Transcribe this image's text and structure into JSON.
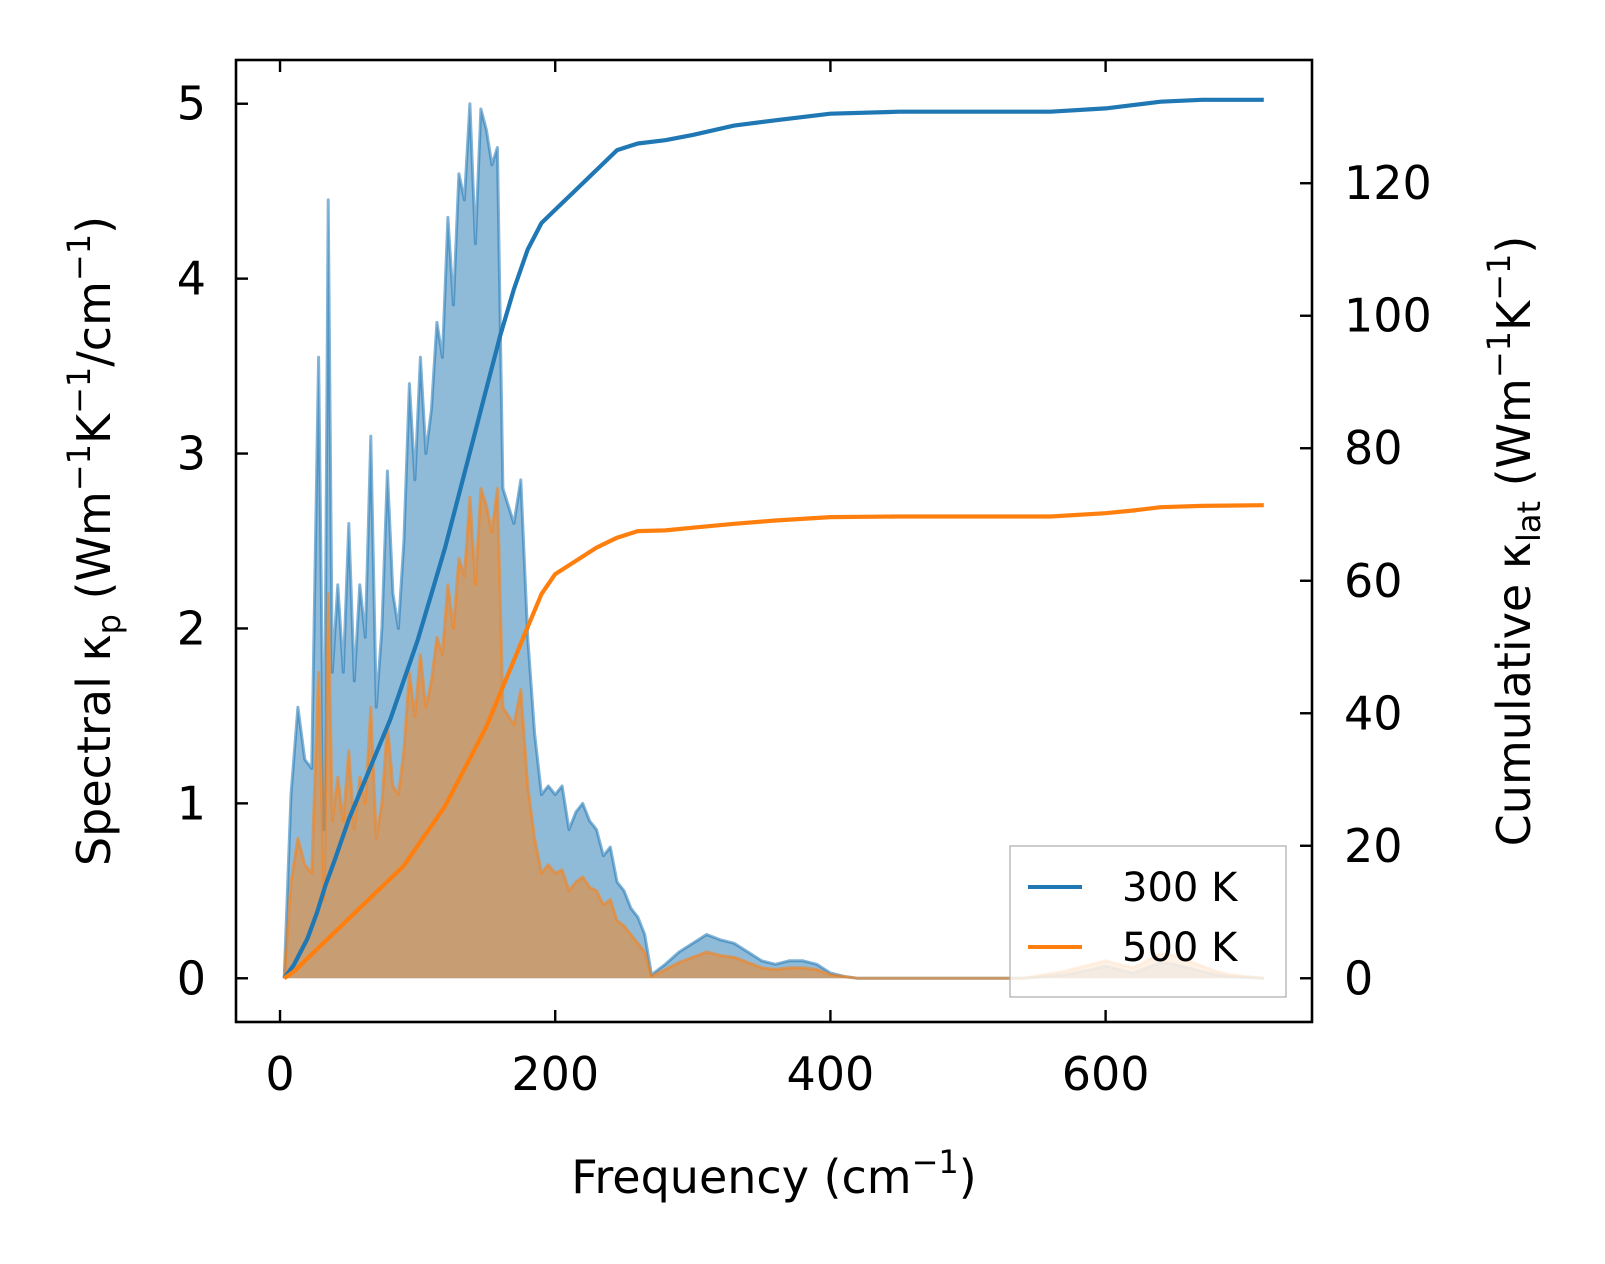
{
  "chart_data": {
    "type": "line",
    "x_axis": {
      "label_main": "Frequency (cm",
      "label_sup": "−1",
      "label_tail": ")",
      "range": [
        -32,
        750
      ],
      "ticks": [
        0,
        200,
        400,
        600
      ],
      "tick_labels": [
        "0",
        "200",
        "400",
        "600"
      ]
    },
    "y_left": {
      "label_prefix": "Spectral κ",
      "label_sub": "p",
      "label_part1": " (Wm",
      "label_sup1": "−1",
      "label_part2": "K",
      "label_sup2": "−1",
      "label_part3": "/cm",
      "label_sup3": "−1",
      "label_part4": ")",
      "range": [
        -0.25,
        5.25
      ],
      "ticks": [
        0,
        1,
        2,
        3,
        4,
        5
      ],
      "tick_labels": [
        "0",
        "1",
        "2",
        "3",
        "4",
        "5"
      ]
    },
    "y_right": {
      "label_prefix": "Cumulative κ",
      "label_sub": "lat",
      "label_part1": " (Wm",
      "label_sup1": "−1",
      "label_part2": "K",
      "label_sup2": "−1",
      "label_part3": ")",
      "range": [
        -6.6,
        138.6
      ],
      "ticks": [
        0,
        20,
        40,
        60,
        80,
        100,
        120
      ],
      "tick_labels": [
        "0",
        "20",
        "40",
        "60",
        "80",
        "100",
        "120"
      ]
    },
    "legend": {
      "position": "lower-right",
      "entries": [
        {
          "label": "300 K",
          "color": "#1f77b4"
        },
        {
          "label": "500 K",
          "color": "#ff7f0e"
        }
      ]
    },
    "spectral_series": [
      {
        "name": "300 K",
        "color": "#1f77b4",
        "x": [
          3,
          8,
          13,
          18,
          23,
          28,
          32,
          35,
          38,
          42,
          46,
          50,
          54,
          58,
          62,
          66,
          70,
          74,
          78,
          82,
          86,
          90,
          94,
          98,
          102,
          106,
          110,
          114,
          118,
          122,
          126,
          130,
          134,
          138,
          142,
          146,
          150,
          154,
          158,
          162,
          166,
          170,
          175,
          180,
          185,
          190,
          195,
          200,
          205,
          210,
          215,
          220,
          225,
          230,
          235,
          240,
          245,
          250,
          255,
          260,
          265,
          270,
          280,
          290,
          300,
          310,
          320,
          330,
          340,
          350,
          360,
          370,
          380,
          390,
          400,
          410,
          420,
          500,
          540,
          570,
          590,
          600,
          610,
          620,
          630,
          640,
          650,
          660,
          670,
          680,
          690,
          715
        ],
        "y": [
          0,
          1.05,
          1.55,
          1.25,
          1.2,
          3.55,
          0.85,
          4.45,
          1.75,
          2.25,
          1.75,
          2.6,
          1.7,
          2.25,
          1.95,
          3.1,
          1.55,
          2.0,
          2.9,
          2.2,
          2.0,
          2.5,
          3.4,
          2.85,
          3.55,
          3.0,
          3.25,
          3.75,
          3.55,
          4.35,
          3.85,
          4.6,
          4.45,
          5.0,
          4.2,
          4.97,
          4.85,
          4.65,
          4.75,
          2.8,
          2.7,
          2.6,
          2.85,
          1.95,
          1.4,
          1.05,
          1.1,
          1.05,
          1.1,
          0.85,
          0.95,
          1.0,
          0.9,
          0.85,
          0.7,
          0.75,
          0.55,
          0.5,
          0.4,
          0.35,
          0.25,
          0.02,
          0.08,
          0.15,
          0.2,
          0.25,
          0.22,
          0.2,
          0.15,
          0.1,
          0.08,
          0.1,
          0.1,
          0.08,
          0.03,
          0.01,
          0.0,
          0.0,
          0.0,
          0.02,
          0.05,
          0.07,
          0.05,
          0.03,
          0.06,
          0.09,
          0.08,
          0.06,
          0.04,
          0.02,
          0.01,
          0.0
        ]
      },
      {
        "name": "500 K",
        "color": "#ff7f0e",
        "x": [
          3,
          8,
          13,
          18,
          23,
          28,
          32,
          35,
          38,
          42,
          46,
          50,
          54,
          58,
          62,
          66,
          70,
          74,
          78,
          82,
          86,
          90,
          94,
          98,
          102,
          106,
          110,
          114,
          118,
          122,
          126,
          130,
          134,
          138,
          142,
          146,
          150,
          154,
          158,
          162,
          166,
          170,
          175,
          180,
          185,
          190,
          195,
          200,
          205,
          210,
          215,
          220,
          225,
          230,
          235,
          240,
          245,
          250,
          255,
          260,
          265,
          270,
          280,
          290,
          300,
          310,
          320,
          330,
          340,
          350,
          360,
          370,
          380,
          390,
          400,
          410,
          420,
          500,
          540,
          570,
          590,
          600,
          610,
          620,
          630,
          640,
          650,
          660,
          670,
          680,
          690,
          715
        ],
        "y": [
          0,
          0.55,
          0.8,
          0.65,
          0.6,
          1.75,
          0.45,
          2.2,
          0.9,
          1.15,
          0.9,
          1.3,
          0.85,
          1.15,
          1.0,
          1.55,
          0.8,
          1.0,
          1.45,
          1.1,
          1.05,
          1.3,
          1.75,
          1.5,
          1.85,
          1.55,
          1.7,
          1.95,
          1.85,
          2.25,
          2.0,
          2.4,
          2.3,
          2.75,
          2.25,
          2.8,
          2.7,
          2.55,
          2.8,
          1.55,
          1.5,
          1.45,
          1.65,
          1.1,
          0.8,
          0.6,
          0.65,
          0.6,
          0.62,
          0.5,
          0.55,
          0.58,
          0.52,
          0.5,
          0.42,
          0.45,
          0.33,
          0.3,
          0.25,
          0.2,
          0.15,
          0.01,
          0.05,
          0.09,
          0.12,
          0.15,
          0.13,
          0.12,
          0.09,
          0.06,
          0.05,
          0.06,
          0.06,
          0.05,
          0.02,
          0.01,
          0.0,
          0.0,
          0.0,
          0.04,
          0.08,
          0.1,
          0.08,
          0.06,
          0.1,
          0.14,
          0.13,
          0.1,
          0.07,
          0.04,
          0.02,
          0.0
        ]
      }
    ],
    "cumulative_series": [
      {
        "name": "300 K",
        "color": "#1f77b4",
        "x": [
          3,
          10,
          20,
          27,
          33,
          40,
          50,
          60,
          70,
          80,
          90,
          100,
          110,
          120,
          130,
          140,
          150,
          160,
          170,
          180,
          190,
          200,
          215,
          230,
          245,
          260,
          280,
          300,
          330,
          360,
          400,
          450,
          500,
          560,
          600,
          620,
          640,
          670,
          715
        ],
        "y": [
          0,
          2,
          6,
          10,
          14,
          18,
          24,
          29,
          34,
          39,
          45,
          51,
          58,
          65,
          73,
          81,
          89,
          97,
          104,
          110,
          114,
          116,
          119,
          122,
          125,
          126,
          126.5,
          127.3,
          128.7,
          129.5,
          130.5,
          130.8,
          130.8,
          130.8,
          131.3,
          131.8,
          132.3,
          132.6,
          132.6
        ]
      },
      {
        "name": "500 K",
        "color": "#ff7f0e",
        "x": [
          3,
          10,
          20,
          30,
          40,
          50,
          60,
          70,
          80,
          90,
          100,
          110,
          120,
          130,
          140,
          150,
          160,
          170,
          180,
          190,
          200,
          215,
          230,
          245,
          260,
          280,
          300,
          330,
          360,
          400,
          450,
          500,
          560,
          600,
          620,
          640,
          670,
          715
        ],
        "y": [
          0,
          1,
          3,
          5,
          7,
          9,
          11,
          13,
          15,
          17,
          20,
          23,
          26,
          30,
          34,
          38,
          43,
          48,
          53,
          58,
          61,
          63,
          65,
          66.5,
          67.5,
          67.6,
          68,
          68.6,
          69.1,
          69.6,
          69.7,
          69.7,
          69.7,
          70.2,
          70.6,
          71.1,
          71.3,
          71.4
        ]
      }
    ]
  }
}
